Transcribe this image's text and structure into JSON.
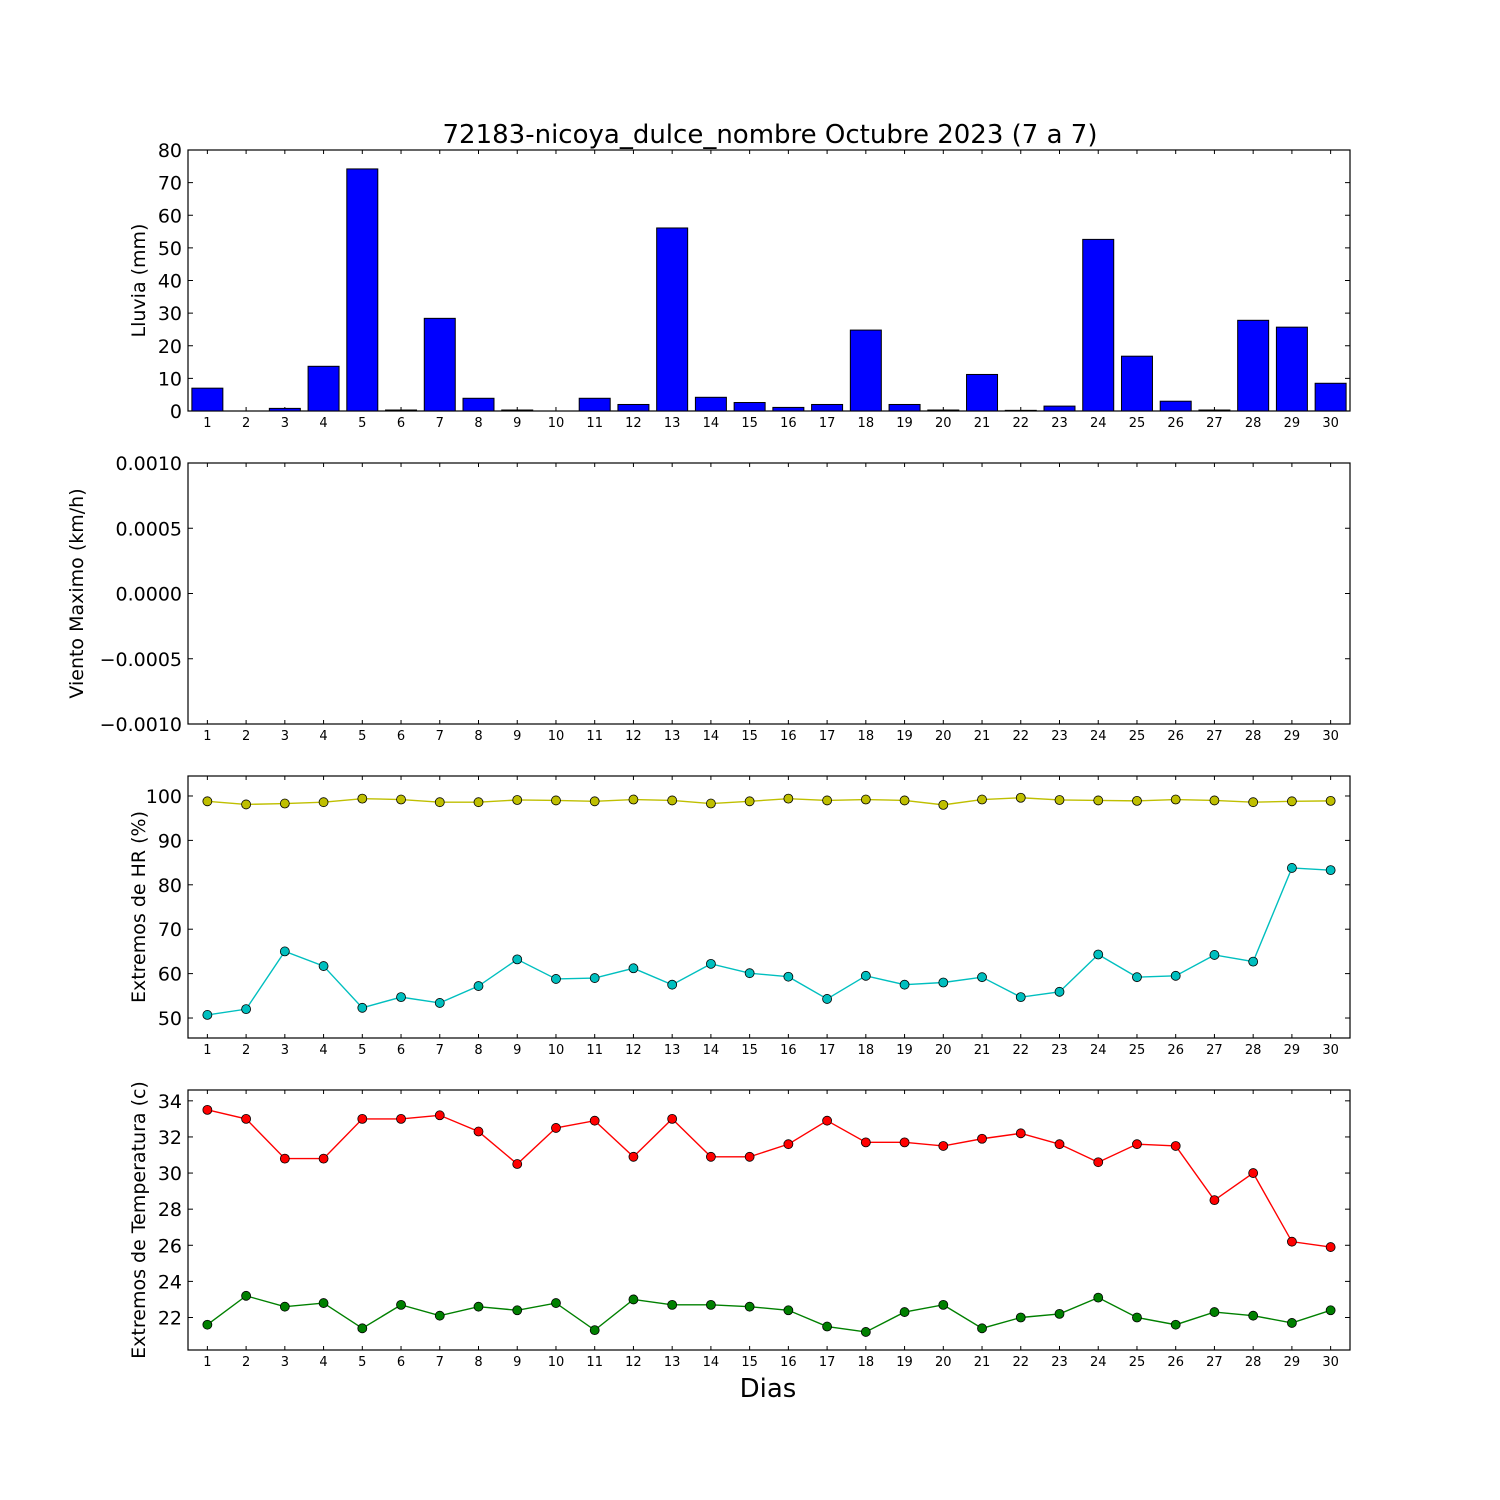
{
  "title": "72183-nicoya_dulce_nombre Octubre 2023  (7 a 7)",
  "xlabel": "Dias",
  "chart_data": [
    {
      "type": "bar",
      "ylabel": "Lluvia (mm)",
      "ylim": [
        0,
        80
      ],
      "yticks": [
        0,
        10,
        20,
        30,
        40,
        50,
        60,
        70,
        80
      ],
      "ytick_labels": [
        "0",
        "10",
        "20",
        "30",
        "40",
        "50",
        "60",
        "70",
        "80"
      ],
      "categories": [
        "1",
        "2",
        "3",
        "4",
        "5",
        "6",
        "7",
        "8",
        "9",
        "10",
        "11",
        "12",
        "13",
        "14",
        "15",
        "16",
        "17",
        "18",
        "19",
        "20",
        "21",
        "22",
        "23",
        "24",
        "25",
        "26",
        "27",
        "28",
        "29",
        "30"
      ],
      "series": [
        {
          "color": "#0000ff",
          "values": [
            7.0,
            0,
            0.8,
            13.7,
            74.2,
            0.3,
            28.4,
            3.9,
            0.3,
            0,
            3.9,
            2.0,
            56.1,
            4.2,
            2.6,
            1.1,
            2.0,
            24.8,
            2.0,
            0.3,
            11.2,
            0.2,
            1.5,
            52.6,
            16.8,
            3.0,
            0.3,
            27.8,
            25.7,
            8.5
          ]
        }
      ]
    },
    {
      "type": "line",
      "ylabel": "Viento Maximo (km/h)",
      "ylim": [
        -0.001,
        0.001
      ],
      "yticks": [
        -0.001,
        -0.0005,
        0,
        0.0005,
        0.001
      ],
      "ytick_labels": [
        "−0.0010",
        "−0.0005",
        "0.0000",
        "0.0005",
        "0.0010"
      ],
      "categories": [
        "1",
        "2",
        "3",
        "4",
        "5",
        "6",
        "7",
        "8",
        "9",
        "10",
        "11",
        "12",
        "13",
        "14",
        "15",
        "16",
        "17",
        "18",
        "19",
        "20",
        "21",
        "22",
        "23",
        "24",
        "25",
        "26",
        "27",
        "28",
        "29",
        "30"
      ],
      "series": []
    },
    {
      "type": "line",
      "ylabel": "Extremos de HR (%)",
      "ylim": [
        45.5,
        104.5
      ],
      "yticks": [
        50,
        60,
        70,
        80,
        90,
        100
      ],
      "ytick_labels": [
        "50",
        "60",
        "70",
        "80",
        "90",
        "100"
      ],
      "categories": [
        "1",
        "2",
        "3",
        "4",
        "5",
        "6",
        "7",
        "8",
        "9",
        "10",
        "11",
        "12",
        "13",
        "14",
        "15",
        "16",
        "17",
        "18",
        "19",
        "20",
        "21",
        "22",
        "23",
        "24",
        "25",
        "26",
        "27",
        "28",
        "29",
        "30"
      ],
      "series": [
        {
          "color": "#bfbf00",
          "values": [
            98.8,
            98.1,
            98.3,
            98.6,
            99.4,
            99.2,
            98.6,
            98.6,
            99.1,
            99.0,
            98.8,
            99.2,
            99.0,
            98.3,
            98.8,
            99.4,
            99.0,
            99.2,
            99.0,
            98.0,
            99.2,
            99.6,
            99.1,
            99.0,
            98.9,
            99.2,
            99.0,
            98.6,
            98.8,
            98.9
          ]
        },
        {
          "color": "#00bfbf",
          "values": [
            50.7,
            52.0,
            65.0,
            61.7,
            52.3,
            54.7,
            53.4,
            57.2,
            63.2,
            58.8,
            59.0,
            61.2,
            57.5,
            62.2,
            60.1,
            59.3,
            54.3,
            59.5,
            57.5,
            58.0,
            59.2,
            54.7,
            55.9,
            64.3,
            59.2,
            59.5,
            64.2,
            62.7,
            83.8,
            83.3
          ]
        }
      ]
    },
    {
      "type": "line",
      "ylabel": "Extremos de Temperatura (c)",
      "ylim": [
        20.2,
        34.6
      ],
      "yticks": [
        22,
        24,
        26,
        28,
        30,
        32,
        34
      ],
      "ytick_labels": [
        "22",
        "24",
        "26",
        "28",
        "30",
        "32",
        "34"
      ],
      "categories": [
        "1",
        "2",
        "3",
        "4",
        "5",
        "6",
        "7",
        "8",
        "9",
        "10",
        "11",
        "12",
        "13",
        "14",
        "15",
        "16",
        "17",
        "18",
        "19",
        "20",
        "21",
        "22",
        "23",
        "24",
        "25",
        "26",
        "27",
        "28",
        "29",
        "30"
      ],
      "series": [
        {
          "color": "#ff0000",
          "values": [
            33.5,
            33.0,
            30.8,
            30.8,
            33.0,
            33.0,
            33.2,
            32.3,
            30.5,
            32.5,
            32.9,
            30.9,
            33.0,
            30.9,
            30.9,
            31.6,
            32.9,
            31.7,
            31.7,
            31.5,
            31.9,
            32.2,
            31.6,
            30.6,
            31.6,
            31.5,
            28.5,
            30.0,
            26.2,
            25.9
          ]
        },
        {
          "color": "#008000",
          "values": [
            21.6,
            23.2,
            22.6,
            22.8,
            21.4,
            22.7,
            22.1,
            22.6,
            22.4,
            22.8,
            21.3,
            23.0,
            22.7,
            22.7,
            22.6,
            22.4,
            21.5,
            21.2,
            22.3,
            22.7,
            21.4,
            22.0,
            22.2,
            23.1,
            22.0,
            21.6,
            22.3,
            22.1,
            21.7,
            22.4
          ]
        }
      ]
    }
  ]
}
